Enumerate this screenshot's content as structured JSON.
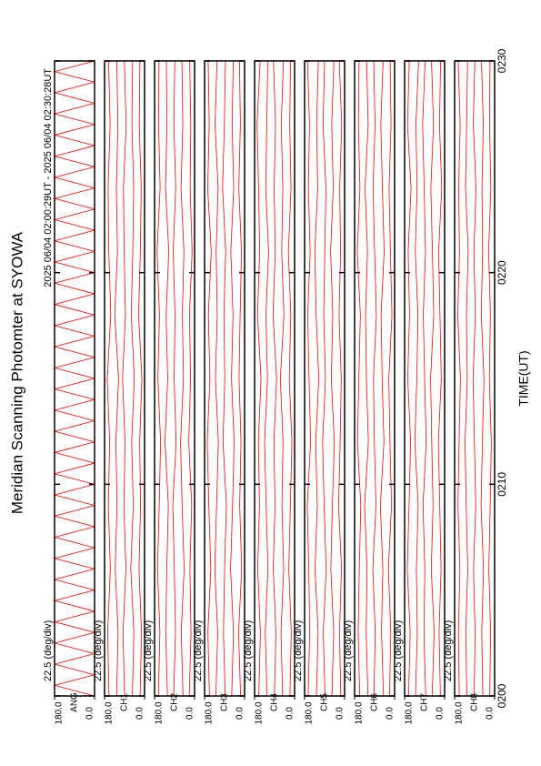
{
  "chart_data": {
    "type": "line",
    "title": "Meridian Scanning Photomter at SYOWA",
    "subtitle": "2025 06/04 02:00:29UT - 2025 06/04 02:30:28UT",
    "xlabel": "TIME(UT)",
    "xlim": [
      0,
      30
    ],
    "xticks": [
      {
        "value": 0,
        "label": "0200"
      },
      {
        "value": 10,
        "label": "0210"
      },
      {
        "value": 20,
        "label": "0220"
      },
      {
        "value": 30,
        "label": "0230"
      }
    ],
    "panels": [
      {
        "label": "ANG",
        "scale_label": "22.5 (deg/div)",
        "ylim": [
          0,
          180
        ],
        "yticks": [
          {
            "value": 180,
            "label": "180.0"
          },
          {
            "value": 0,
            "label": "0.0"
          }
        ],
        "x": [
          0,
          0.5,
          1,
          1.5,
          2,
          2.5,
          3,
          3.5,
          4,
          4.5,
          5,
          5.5,
          6,
          6.5,
          7,
          7.5,
          8,
          8.5,
          9,
          9.5,
          10,
          10.5,
          11,
          11.5,
          12,
          12.5,
          13,
          13.5,
          14,
          14.5,
          15,
          15.5,
          16,
          16.5,
          17,
          17.5,
          18,
          18.5,
          19,
          19.5,
          20,
          20.5,
          21,
          21.5,
          22,
          22.5,
          23,
          23.5,
          24,
          24.5,
          25,
          25.5,
          26,
          26.5,
          27,
          27.5,
          28,
          28.5,
          29,
          29.5,
          30
        ],
        "series": [
          {
            "color": "#ff0000",
            "values": [
              0,
              180,
              0,
              180,
              0,
              180,
              0,
              180,
              0,
              180,
              0,
              180,
              0,
              180,
              0,
              180,
              0,
              180,
              0,
              180,
              0,
              180,
              0,
              180,
              0,
              180,
              0,
              180,
              0,
              180,
              0,
              180,
              0,
              180,
              0,
              180,
              0,
              180,
              0,
              180,
              0,
              180,
              0,
              180,
              0,
              180,
              0,
              180,
              0,
              180,
              0,
              180,
              0,
              180,
              0,
              180,
              0,
              180,
              0,
              180,
              0
            ]
          }
        ]
      },
      {
        "label": "CH1",
        "scale_label": "22.5 (deg/div)",
        "ylim": [
          0,
          180
        ],
        "yticks": [
          {
            "value": 180,
            "label": "180.0"
          },
          {
            "value": 0,
            "label": "0.0"
          }
        ],
        "x": [
          0,
          3,
          6,
          9,
          12,
          15,
          18,
          21,
          24,
          27,
          30
        ],
        "series": [
          {
            "color": "#ff0000",
            "values": [
              20,
              14,
              25,
              18,
              22,
              12,
              27,
              19,
              15,
              24,
              21
            ]
          },
          {
            "color": "#ff0000",
            "values": [
              55,
              48,
              62,
              51,
              58,
              46,
              60,
              53,
              49,
              57,
              54
            ]
          },
          {
            "color": "#ff0000",
            "values": [
              90,
              97,
              84,
              93,
              88,
              99,
              86,
              92,
              95,
              83,
              91
            ]
          },
          {
            "color": "#ff0000",
            "values": [
              126,
              119,
              132,
              124,
              129,
              117,
              134,
              122,
              127,
              120,
              125
            ]
          },
          {
            "color": "#ff0000",
            "values": [
              160,
              166,
              154,
              163,
              157,
              168,
              152,
              161,
              164,
              155,
              162
            ]
          }
        ]
      },
      {
        "label": "CH2",
        "scale_label": "22.5 (deg/div)",
        "ylim": [
          0,
          180
        ],
        "yticks": [
          {
            "value": 180,
            "label": "180.0"
          },
          {
            "value": 0,
            "label": "0.0"
          }
        ],
        "x": [
          0,
          3,
          6,
          9,
          12,
          15,
          18,
          21,
          24,
          27,
          30
        ],
        "series": [
          {
            "color": "#ff0000",
            "values": [
              24,
              16,
              21,
              13,
              26,
              18,
              23,
              11,
              20,
              17,
              22
            ]
          },
          {
            "color": "#ff0000",
            "values": [
              52,
              60,
              47,
              56,
              63,
              50,
              55,
              48,
              61,
              53,
              57
            ]
          },
          {
            "color": "#ff0000",
            "values": [
              94,
              86,
              91,
              98,
              83,
              92,
              88,
              96,
              85,
              93,
              89
            ]
          },
          {
            "color": "#ff0000",
            "values": [
              122,
              130,
              125,
              118,
              133,
              121,
              128,
              116,
              131,
              124,
              127
            ]
          },
          {
            "color": "#ff0000",
            "values": [
              163,
              156,
              167,
              159,
              153,
              165,
              158,
              169,
              155,
              162,
              160
            ]
          }
        ]
      },
      {
        "label": "CH3",
        "scale_label": "22.5 (deg/div)",
        "ylim": [
          0,
          180
        ],
        "yticks": [
          {
            "value": 180,
            "label": "180.0"
          },
          {
            "value": 0,
            "label": "0.0"
          }
        ],
        "x": [
          0,
          3,
          6,
          9,
          12,
          15,
          18,
          21,
          24,
          27,
          30
        ],
        "series": [
          {
            "color": "#ff0000",
            "values": [
              18,
              27,
              13,
              22,
              16,
              25,
              20,
              14,
              26,
              19,
              23
            ]
          },
          {
            "color": "#ff0000",
            "values": [
              58,
              50,
              63,
              54,
              47,
              59,
              52,
              62,
              49,
              56,
              51
            ]
          },
          {
            "color": "#ff0000",
            "values": [
              87,
              95,
              90,
              82,
              97,
              89,
              93,
              85,
              99,
              91,
              86
            ]
          },
          {
            "color": "#ff0000",
            "values": [
              129,
              121,
              134,
              126,
              118,
              131,
              123,
              128,
              119,
              133,
              124
            ]
          },
          {
            "color": "#ff0000",
            "values": [
              158,
              165,
              152,
              161,
              168,
              156,
              163,
              150,
              166,
              159,
              164
            ]
          }
        ]
      },
      {
        "label": "CH4",
        "scale_label": "22.5 (deg/div)",
        "ylim": [
          0,
          180
        ],
        "yticks": [
          {
            "value": 180,
            "label": "180.0"
          },
          {
            "value": 0,
            "label": "0.0"
          }
        ],
        "x": [
          0,
          3,
          6,
          9,
          12,
          15,
          18,
          21,
          24,
          27,
          30
        ],
        "series": [
          {
            "color": "#ff0000",
            "values": [
              21,
              15,
              26,
              19,
              12,
              24,
              17,
              28,
              16,
              22,
              18
            ]
          },
          {
            "color": "#ff0000",
            "values": [
              54,
              61,
              49,
              57,
              52,
              64,
              48,
              58,
              53,
              60,
              50
            ]
          },
          {
            "color": "#ff0000",
            "values": [
              91,
              84,
              96,
              88,
              93,
              81,
              97,
              87,
              92,
              86,
              95
            ]
          },
          {
            "color": "#ff0000",
            "values": [
              124,
              132,
              120,
              128,
              135,
              122,
              129,
              117,
              130,
              125,
              121
            ]
          },
          {
            "color": "#ff0000",
            "values": [
              161,
              154,
              166,
              158,
              163,
              151,
              167,
              157,
              162,
              169,
              155
            ]
          }
        ]
      },
      {
        "label": "CH5",
        "scale_label": "22.5 (deg/div)",
        "ylim": [
          0,
          180
        ],
        "yticks": [
          {
            "value": 180,
            "label": "180.0"
          },
          {
            "value": 0,
            "label": "0.0"
          }
        ],
        "x": [
          0,
          3,
          6,
          9,
          12,
          15,
          18,
          21,
          24,
          27,
          30
        ],
        "series": [
          {
            "color": "#ff0000",
            "values": [
              17,
              23,
              14,
              27,
              20,
              15,
              25,
              18,
              22,
              13,
              24
            ]
          },
          {
            "color": "#ff0000",
            "values": [
              57,
              49,
              62,
              55,
              46,
              60,
              53,
              63,
              51,
              58,
              48
            ]
          },
          {
            "color": "#ff0000",
            "values": [
              88,
              96,
              83,
              92,
              99,
              86,
              94,
              89,
              84,
              97,
              90
            ]
          },
          {
            "color": "#ff0000",
            "values": [
              127,
              119,
              133,
              123,
              130,
              116,
              128,
              134,
              121,
              126,
              118
            ]
          },
          {
            "color": "#ff0000",
            "values": [
              164,
              157,
              161,
              168,
              153,
              160,
              166,
              155,
              163,
              158,
              167
            ]
          }
        ]
      },
      {
        "label": "CH6",
        "scale_label": "22.5 (deg/div)",
        "ylim": [
          0,
          180
        ],
        "yticks": [
          {
            "value": 180,
            "label": "180.0"
          },
          {
            "value": 0,
            "label": "0.0"
          }
        ],
        "x": [
          0,
          3,
          6,
          9,
          12,
          15,
          18,
          21,
          24,
          27,
          30
        ],
        "series": [
          {
            "color": "#ff0000",
            "values": [
              23,
              17,
              28,
              14,
              21,
              26,
              12,
              19,
              25,
              16,
              20
            ]
          },
          {
            "color": "#ff0000",
            "values": [
              50,
              59,
              53,
              64,
              48,
              56,
              61,
              47,
              55,
              62,
              52
            ]
          },
          {
            "color": "#ff0000",
            "values": [
              93,
              87,
              98,
              84,
              91,
              95,
              82,
              90,
              97,
              88,
              94
            ]
          },
          {
            "color": "#ff0000",
            "values": [
              120,
              128,
              124,
              135,
              118,
              127,
              131,
              122,
              133,
              119,
              126
            ]
          },
          {
            "color": "#ff0000",
            "values": [
              157,
              164,
              159,
              152,
              167,
              161,
              154,
              168,
              156,
              163,
              160
            ]
          }
        ]
      },
      {
        "label": "CH7",
        "scale_label": "22.5 (deg/div)",
        "ylim": [
          0,
          180
        ],
        "yticks": [
          {
            "value": 180,
            "label": "180.0"
          },
          {
            "value": 0,
            "label": "0.0"
          }
        ],
        "x": [
          0,
          3,
          6,
          9,
          12,
          15,
          18,
          21,
          24,
          27,
          30
        ],
        "series": [
          {
            "color": "#ff0000",
            "values": [
              19,
              25,
              16,
              22,
              28,
              15,
              21,
              27,
              13,
              23,
              18
            ]
          },
          {
            "color": "#ff0000",
            "values": [
              56,
              47,
              60,
              52,
              58,
              63,
              49,
              55,
              62,
              50,
              59
            ]
          },
          {
            "color": "#ff0000",
            "values": [
              85,
              93,
              89,
              97,
              83,
              90,
              96,
              86,
              92,
              99,
              88
            ]
          },
          {
            "color": "#ff0000",
            "values": [
              131,
              123,
              127,
              119,
              134,
              125,
              120,
              132,
              124,
              129,
              117
            ]
          },
          {
            "color": "#ff0000",
            "values": [
              162,
              155,
              168,
              160,
              153,
              166,
              158,
              164,
              151,
              167,
              159
            ]
          }
        ]
      },
      {
        "label": "CH8",
        "scale_label": "22.5 (deg/div)",
        "ylim": [
          0,
          180
        ],
        "yticks": [
          {
            "value": 180,
            "label": "180.0"
          },
          {
            "value": 0,
            "label": "0.0"
          }
        ],
        "x": [
          0,
          3,
          6,
          9,
          12,
          15,
          18,
          21,
          24,
          27,
          30
        ],
        "series": [
          {
            "color": "#ff0000",
            "values": [
              22,
              18,
              26,
              20,
              15,
              24,
              19,
              27,
              17,
              23,
              21
            ]
          },
          {
            "color": "#ff0000",
            "values": [
              53,
              58,
              50,
              61,
              55,
              48,
              60,
              54,
              57,
              51,
              59
            ]
          },
          {
            "color": "#ff0000",
            "values": [
              92,
              88,
              95,
              85,
              91,
              97,
              87,
              93,
              84,
              96,
              89
            ]
          },
          {
            "color": "#ff0000",
            "values": [
              125,
              130,
              121,
              128,
              133,
              123,
              127,
              119,
              131,
              126,
              122
            ]
          },
          {
            "color": "#ff0000",
            "values": [
              159,
              163,
              156,
              165,
              160,
              154,
              166,
              158,
              162,
              155,
              164
            ]
          }
        ]
      }
    ]
  }
}
